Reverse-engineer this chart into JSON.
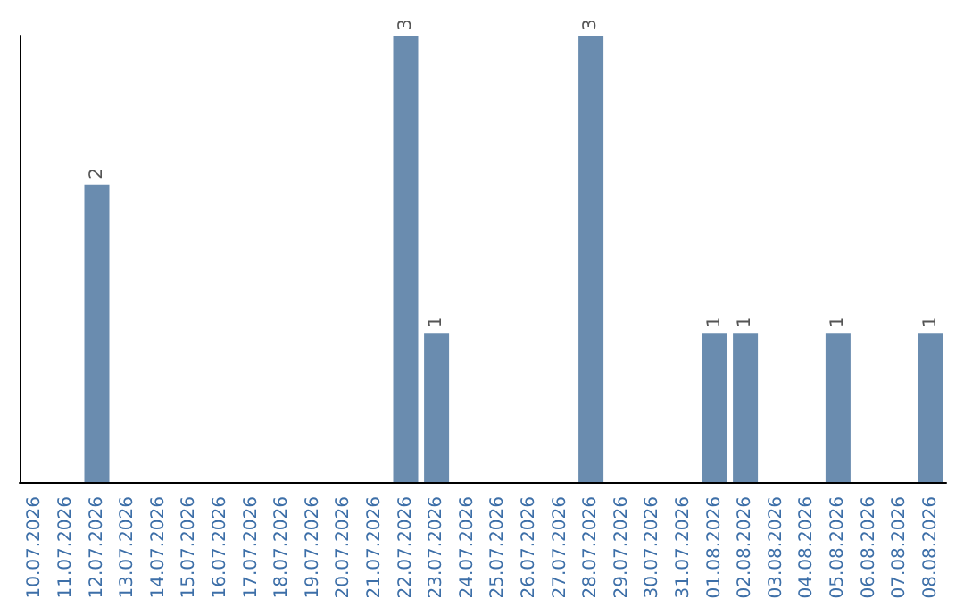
{
  "chart_data": {
    "type": "bar",
    "categories": [
      "10.07.2026",
      "11.07.2026",
      "12.07.2026",
      "13.07.2026",
      "14.07.2026",
      "15.07.2026",
      "16.07.2026",
      "17.07.2026",
      "18.07.2026",
      "19.07.2026",
      "20.07.2026",
      "21.07.2026",
      "22.07.2026",
      "23.07.2026",
      "24.07.2026",
      "25.07.2026",
      "26.07.2026",
      "27.07.2026",
      "28.07.2026",
      "29.07.2026",
      "30.07.2026",
      "31.07.2026",
      "01.08.2026",
      "02.08.2026",
      "03.08.2026",
      "04.08.2026",
      "05.08.2026",
      "06.08.2026",
      "07.08.2026",
      "08.08.2026"
    ],
    "values": [
      0,
      0,
      2,
      0,
      0,
      0,
      0,
      0,
      0,
      0,
      0,
      0,
      3,
      1,
      0,
      0,
      0,
      0,
      3,
      0,
      0,
      0,
      1,
      1,
      0,
      0,
      1,
      0,
      0,
      1
    ],
    "value_labels": [
      null,
      null,
      "2",
      null,
      null,
      null,
      null,
      null,
      null,
      null,
      null,
      null,
      "3",
      "1",
      null,
      null,
      null,
      null,
      "3",
      null,
      null,
      null,
      "1",
      "1",
      null,
      null,
      "1",
      null,
      null,
      "1"
    ],
    "color": "#6a8caf",
    "tick_labels": "x"
  }
}
